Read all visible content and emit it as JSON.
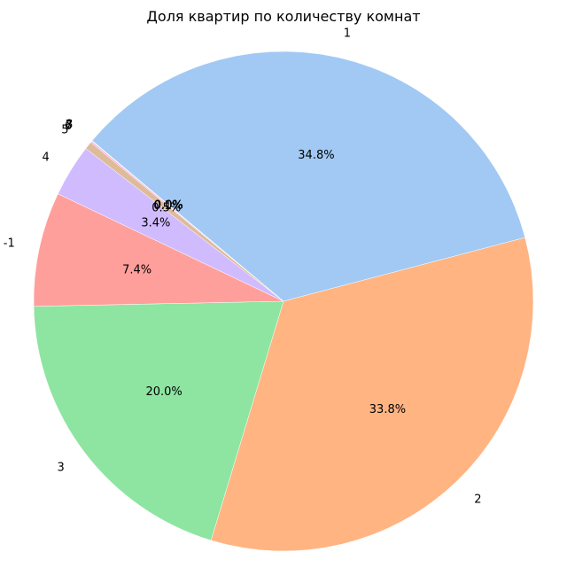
{
  "chart_data": {
    "type": "pie",
    "title": "Доля квартир по количеству комнат",
    "slices": [
      {
        "label": "1",
        "value": 34.8,
        "pct_label": "34.8%",
        "color": "#a1c9f4"
      },
      {
        "label": "2",
        "value": 33.8,
        "pct_label": "33.8%",
        "color": "#ffb482"
      },
      {
        "label": "3",
        "value": 20.0,
        "pct_label": "20.0%",
        "color": "#8de5a1"
      },
      {
        "label": "-1",
        "value": 7.4,
        "pct_label": "7.4%",
        "color": "#ff9f9b"
      },
      {
        "label": "4",
        "value": 3.4,
        "pct_label": "3.4%",
        "color": "#d0bbff"
      },
      {
        "label": "5",
        "value": 0.5,
        "pct_label": "0.5%",
        "color": "#debb9b"
      },
      {
        "label": "6",
        "value": 0.1,
        "pct_label": "0.1%",
        "color": "#fab0e4"
      },
      {
        "label": "7",
        "value": 0.03,
        "pct_label": "0.0%",
        "color": "#cfcfcf"
      },
      {
        "label": "8",
        "value": 0.01,
        "pct_label": "0.0%",
        "color": "#fffea3"
      }
    ],
    "start_angle_deg": 140,
    "direction": "clockwise"
  }
}
